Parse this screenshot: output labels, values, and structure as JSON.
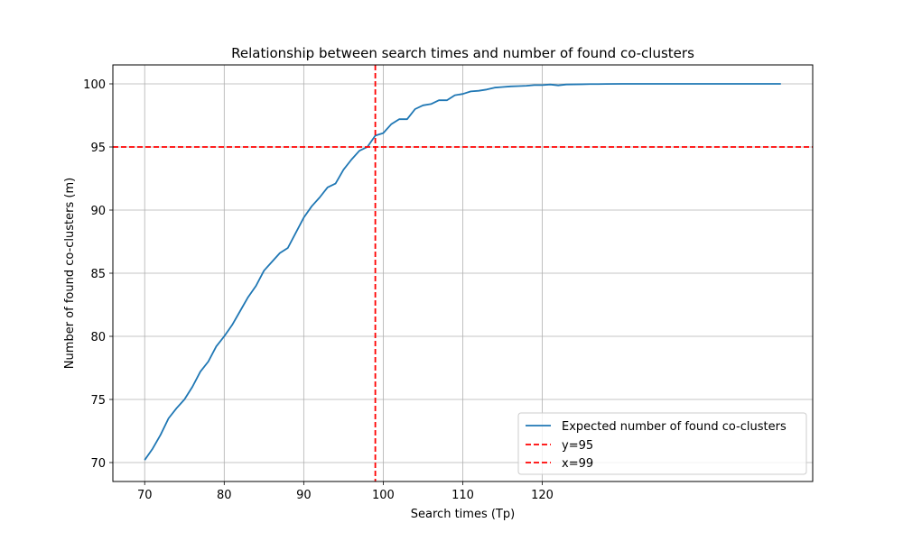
{
  "chart_data": {
    "type": "line",
    "title": "Relationship between search times and number of found co-clusters",
    "xlabel": "Search times (Tp)",
    "ylabel": "Number of found co-clusters (m)",
    "xlim": [
      66,
      154
    ],
    "ylim": [
      68.5,
      101.5
    ],
    "xticks": [
      70,
      80,
      90,
      100,
      110,
      120
    ],
    "yticks": [
      70,
      75,
      80,
      85,
      90,
      95,
      100
    ],
    "grid": true,
    "legend_position": "lower-right",
    "series": [
      {
        "name": "Expected number of found co-clusters",
        "color": "#1f77b4",
        "style": "solid",
        "x": [
          70,
          71,
          72,
          73,
          74,
          75,
          76,
          77,
          78,
          79,
          80,
          81,
          82,
          83,
          84,
          85,
          86,
          87,
          88,
          89,
          90,
          91,
          92,
          93,
          94,
          95,
          96,
          97,
          98,
          99,
          100,
          101,
          102,
          103,
          104,
          105,
          106,
          107,
          108,
          109,
          110,
          111,
          112,
          113,
          114,
          115,
          116,
          117,
          118,
          119,
          120,
          121,
          122,
          123,
          124,
          125,
          126,
          127,
          128,
          130,
          135,
          140,
          145,
          150
        ],
        "values": [
          70.2,
          71.1,
          72.2,
          73.5,
          74.3,
          75.0,
          76.0,
          77.2,
          78.0,
          79.2,
          80.0,
          80.9,
          82.0,
          83.1,
          84.0,
          85.2,
          85.9,
          86.6,
          87.0,
          88.2,
          89.4,
          90.3,
          91.0,
          91.8,
          92.1,
          93.2,
          94.0,
          94.7,
          95.0,
          95.9,
          96.1,
          96.8,
          97.2,
          97.2,
          98.0,
          98.3,
          98.4,
          98.7,
          98.7,
          99.1,
          99.2,
          99.4,
          99.45,
          99.55,
          99.7,
          99.75,
          99.8,
          99.82,
          99.85,
          99.9,
          99.9,
          99.95,
          99.88,
          99.95,
          99.96,
          99.97,
          99.98,
          99.98,
          99.99,
          100.0,
          100.0,
          100.0,
          100.0,
          100.0
        ]
      },
      {
        "name": "y=95",
        "color": "#ff0000",
        "style": "dashed",
        "orientation": "horizontal",
        "value": 95
      },
      {
        "name": "x=99",
        "color": "#ff0000",
        "style": "dashed",
        "orientation": "vertical",
        "value": 99
      }
    ]
  }
}
